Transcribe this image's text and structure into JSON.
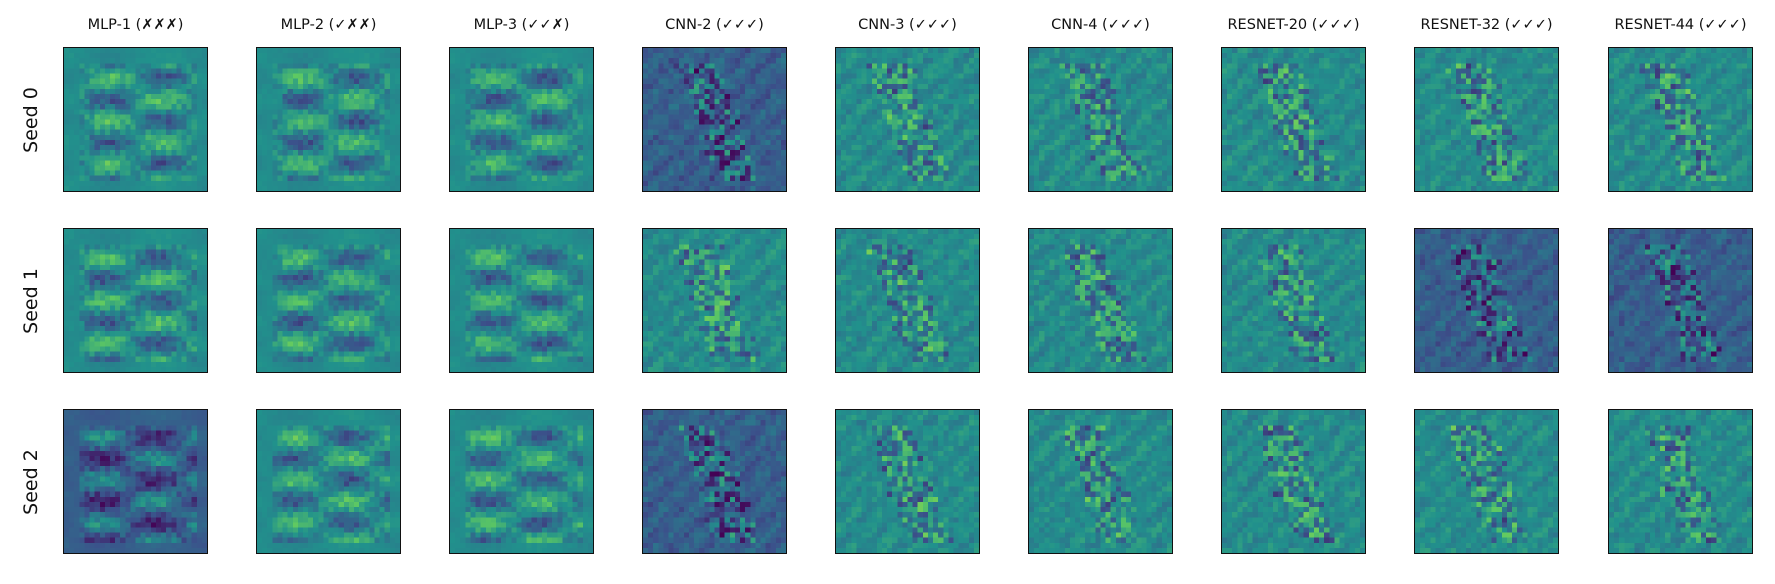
{
  "figure": {
    "columns": [
      {
        "label": "MLP-1 (✗✗✗)"
      },
      {
        "label": "MLP-2 (✓✗✗)"
      },
      {
        "label": "MLP-3 (✓✓✗)"
      },
      {
        "label": "CNN-2 (✓✓✓)"
      },
      {
        "label": "CNN-3 (✓✓✓)"
      },
      {
        "label": "CNN-4 (✓✓✓)"
      },
      {
        "label": "RESNET-20 (✓✓✓)"
      },
      {
        "label": "RESNET-32 (✓✓✓)"
      },
      {
        "label": "RESNET-44 (✓✓✓)"
      }
    ],
    "rows": [
      {
        "label": "Seed 0"
      },
      {
        "label": "Seed 1"
      },
      {
        "label": "Seed 2"
      }
    ],
    "colormap": [
      "#440154",
      "#3b528b",
      "#21918c",
      "#5ec962",
      "#fde725"
    ]
  }
}
